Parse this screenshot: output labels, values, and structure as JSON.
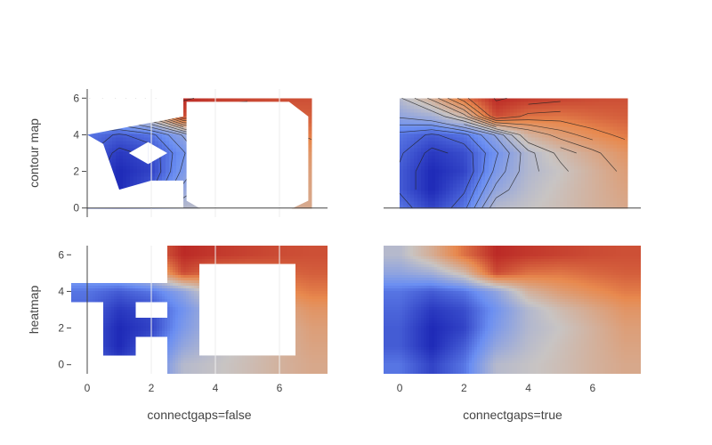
{
  "chart_data": {
    "type": "heatmap",
    "colorscale": [
      "#0b10a8",
      "#6a8ef2",
      "#c8c4c3",
      "#e8894e",
      "#b0121c"
    ],
    "grid": false,
    "row_titles": [
      "contour map",
      "heatmap"
    ],
    "column_titles": [
      "connectgaps=false",
      "connectgaps=true"
    ],
    "x": [
      0,
      1,
      2,
      3,
      4,
      5,
      6,
      7
    ],
    "y": [
      0,
      1,
      2,
      3,
      4,
      5,
      6
    ],
    "xlim": [
      -0.5,
      7.5
    ],
    "ylim": [
      -0.5,
      6.5
    ],
    "xticks": [
      "0",
      "2",
      "4",
      "6"
    ],
    "yticks": [
      "0",
      "2",
      "4",
      "6"
    ],
    "z": [
      [
        null,
        null,
        null,
        0.45,
        0.49,
        0.53,
        0.58,
        0.62
      ],
      [
        null,
        0.05,
        null,
        0.36,
        0.46,
        0.52,
        0.58,
        0.64
      ],
      [
        null,
        0.05,
        0.1,
        0.3,
        0.44,
        0.5,
        0.58,
        0.66
      ],
      [
        null,
        0.08,
        null,
        0.27,
        0.44,
        0.54,
        0.62,
        0.7
      ],
      [
        0.2,
        0.15,
        0.2,
        0.35,
        0.58,
        0.67,
        0.73,
        0.78
      ],
      [
        null,
        null,
        null,
        0.88,
        0.8,
        0.79,
        0.82,
        0.84
      ],
      [
        null,
        null,
        null,
        0.95,
        0.92,
        0.9,
        0.88,
        0.87
      ]
    ],
    "z_filled": [
      [
        0.2,
        0.1,
        0.2,
        0.45,
        0.49,
        0.53,
        0.58,
        0.62
      ],
      [
        0.15,
        0.05,
        0.15,
        0.36,
        0.46,
        0.52,
        0.58,
        0.64
      ],
      [
        0.15,
        0.05,
        0.1,
        0.3,
        0.44,
        0.5,
        0.58,
        0.66
      ],
      [
        0.17,
        0.08,
        0.12,
        0.27,
        0.44,
        0.54,
        0.62,
        0.7
      ],
      [
        0.2,
        0.15,
        0.2,
        0.35,
        0.58,
        0.67,
        0.73,
        0.78
      ],
      [
        0.35,
        0.4,
        0.55,
        0.88,
        0.8,
        0.79,
        0.82,
        0.84
      ],
      [
        0.45,
        0.6,
        0.8,
        0.95,
        0.92,
        0.9,
        0.88,
        0.87
      ]
    ]
  }
}
